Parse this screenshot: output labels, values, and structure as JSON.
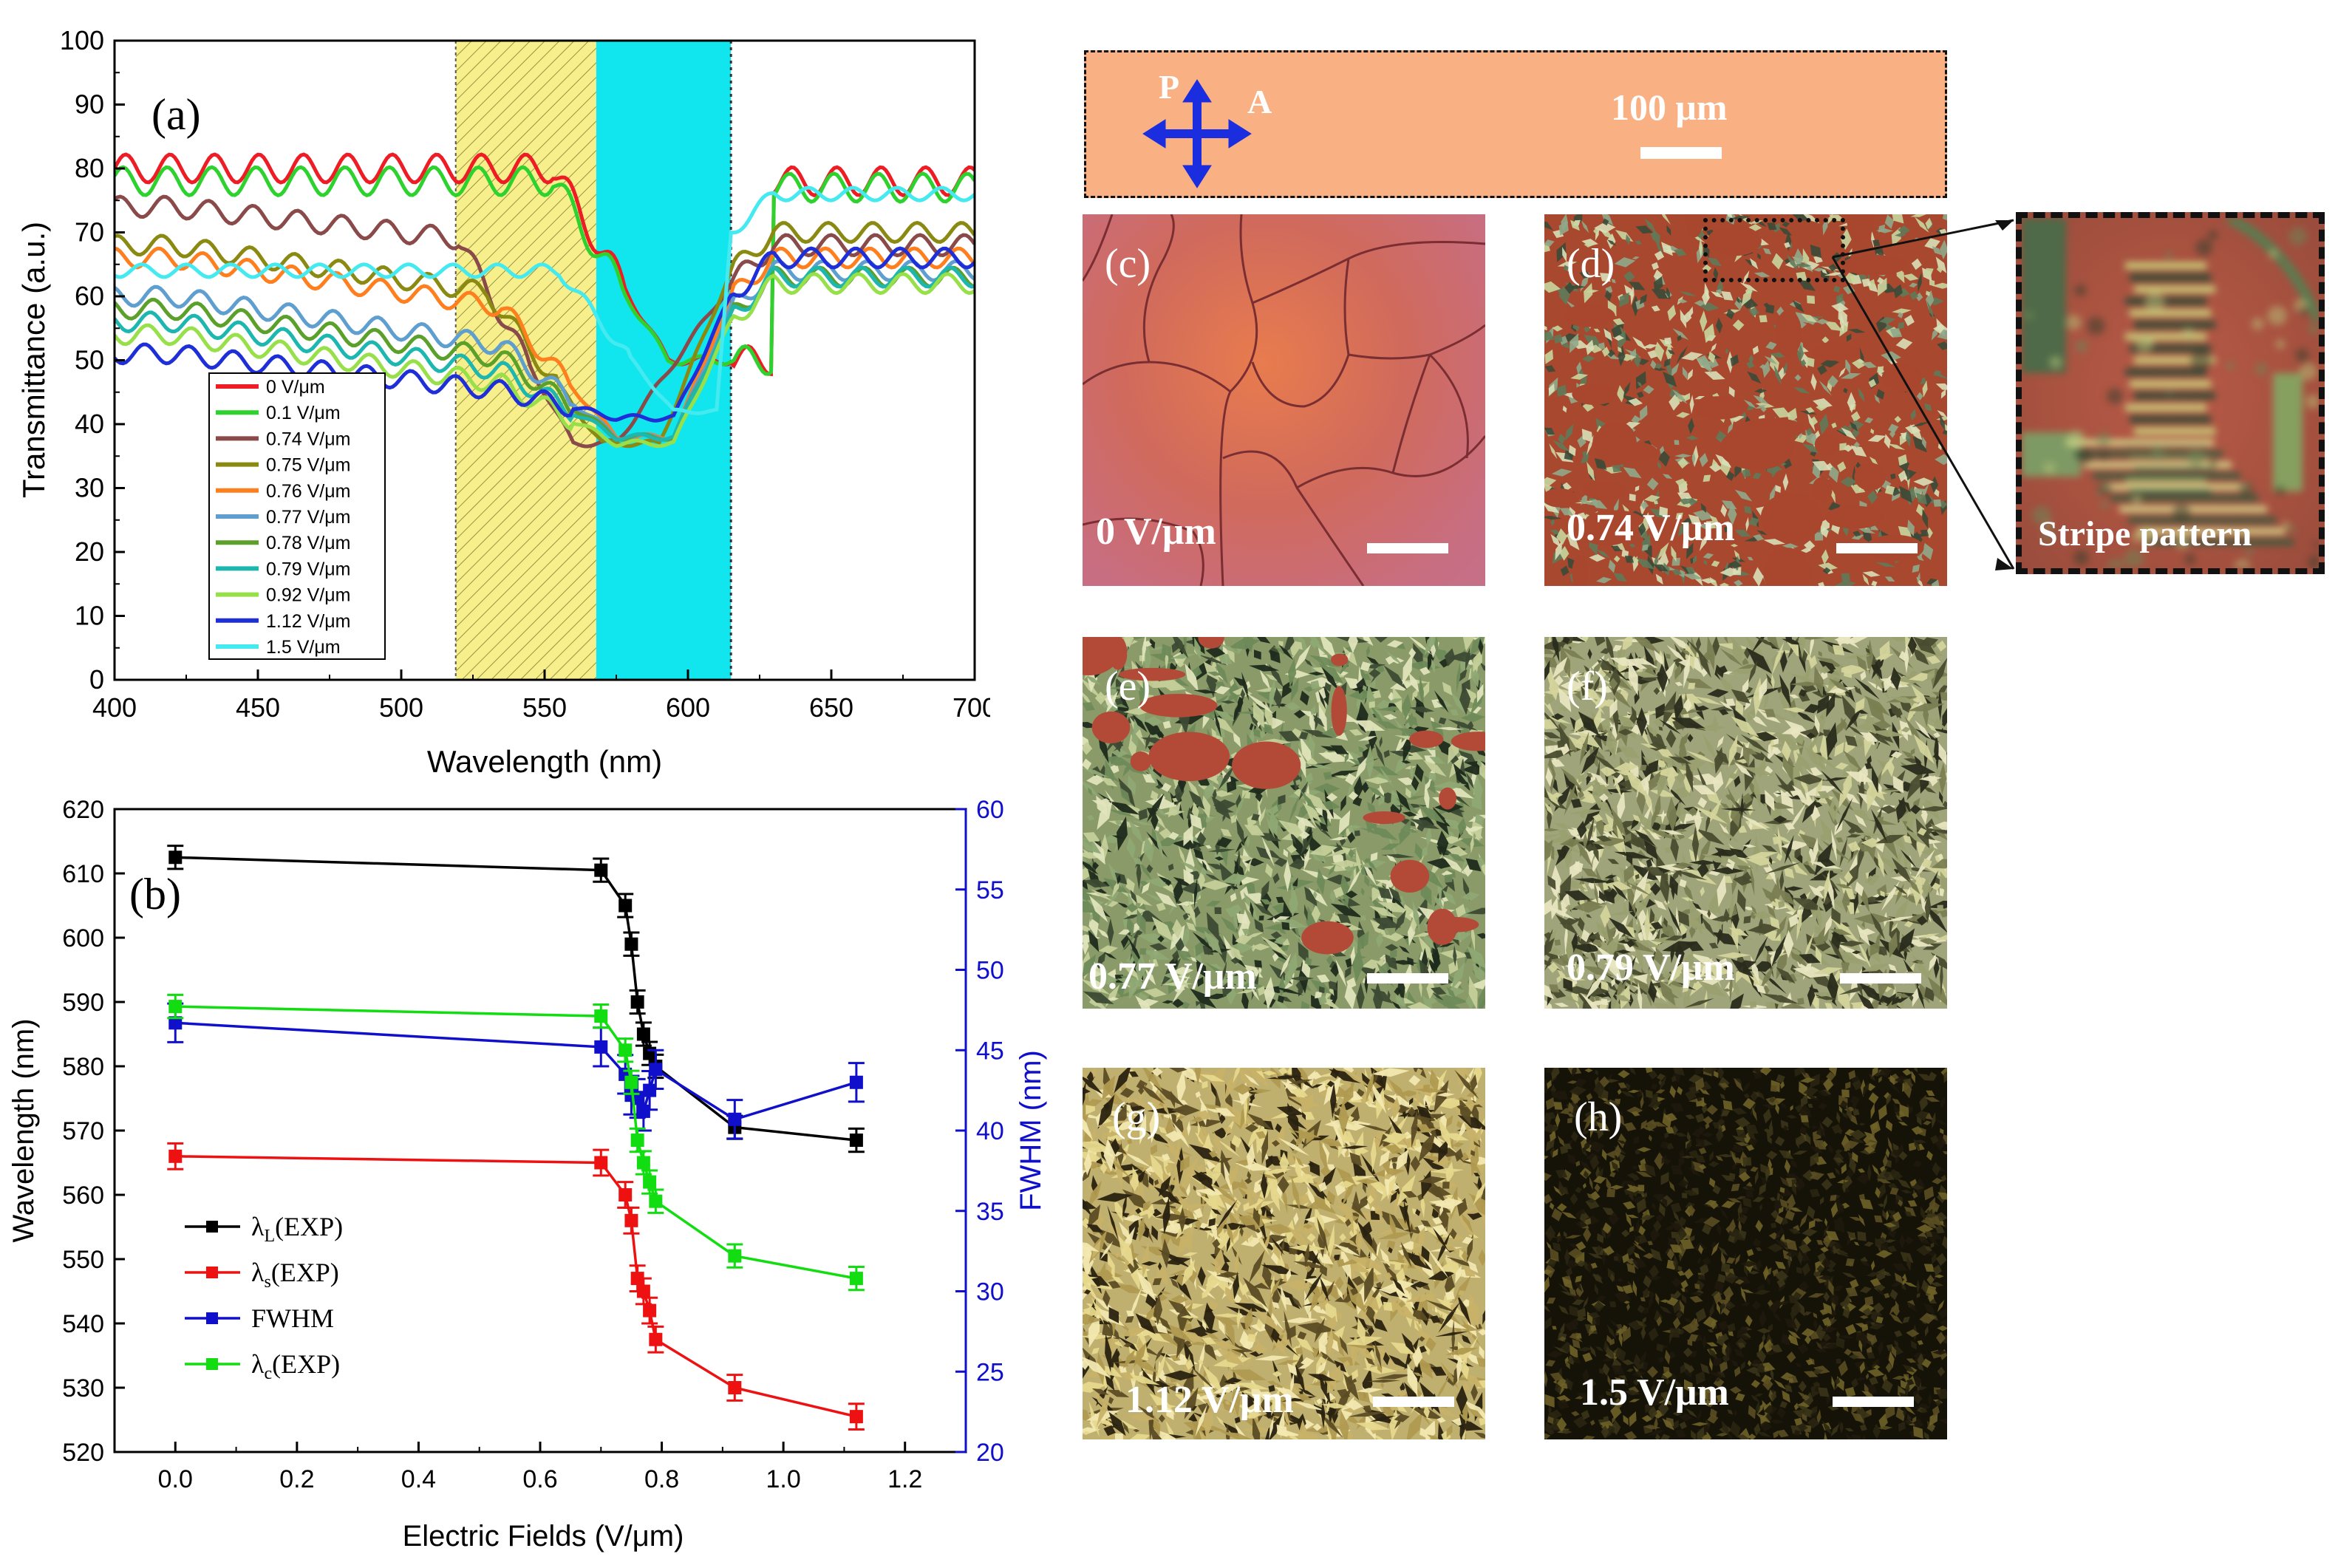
{
  "chart_data": [
    {
      "type": "line",
      "panel_label": "(a)",
      "xlabel": "Wavelength (nm)",
      "ylabel": "Transmittance (a.u.)",
      "xlim": [
        400,
        700
      ],
      "ylim": [
        0,
        100
      ],
      "xticks": [
        400,
        450,
        500,
        550,
        600,
        650,
        700
      ],
      "yticks": [
        0,
        10,
        20,
        30,
        40,
        50,
        60,
        70,
        80,
        90,
        100
      ],
      "bands": [
        {
          "name": "hatched-yellow",
          "from": 519,
          "to": 568,
          "color": "#f5ee8a"
        },
        {
          "name": "cyan",
          "from": 568,
          "to": 615,
          "color": "#11e6ee"
        }
      ],
      "series": [
        {
          "name": "0 V/μm",
          "color": "#ee1c24",
          "level": 80,
          "drop": 0,
          "dip_center": 600,
          "dip_level": 50,
          "edge": 578,
          "post": 78,
          "ripple": 2.2
        },
        {
          "name": "0.1 V/μm",
          "color": "#2ed22e",
          "level": 78,
          "drop": 0,
          "dip_center": 600,
          "dip_level": 50,
          "edge": 578,
          "post": 77,
          "ripple": 2.2
        },
        {
          "name": "0.74 V/μm",
          "color": "#8b4a4a",
          "level": 74,
          "drop": 6,
          "dip_center": 545,
          "dip_level": 37,
          "edge": 545,
          "post": 68,
          "ripple": 1.6
        },
        {
          "name": "0.75 V/μm",
          "color": "#8a8a12",
          "level": 68,
          "drop": 8,
          "dip_center": 560,
          "dip_level": 37,
          "edge": 555,
          "post": 70,
          "ripple": 1.5
        },
        {
          "name": "0.76 V/μm",
          "color": "#ff7f1f",
          "level": 66,
          "drop": 8,
          "dip_center": 565,
          "dip_level": 38,
          "edge": 560,
          "post": 66,
          "ripple": 1.5
        },
        {
          "name": "0.77 V/μm",
          "color": "#5f9fd0",
          "level": 60,
          "drop": 8,
          "dip_center": 565,
          "dip_level": 38,
          "edge": 560,
          "post": 64,
          "ripple": 1.5
        },
        {
          "name": "0.78 V/μm",
          "color": "#5aa02a",
          "level": 58,
          "drop": 8,
          "dip_center": 565,
          "dip_level": 38,
          "edge": 560,
          "post": 63,
          "ripple": 1.5
        },
        {
          "name": "0.79 V/μm",
          "color": "#1db7b0",
          "level": 56,
          "drop": 8,
          "dip_center": 565,
          "dip_level": 38,
          "edge": 560,
          "post": 63,
          "ripple": 1.5
        },
        {
          "name": "0.92 V/μm",
          "color": "#98e04a",
          "level": 54,
          "drop": 8,
          "dip_center": 565,
          "dip_level": 37,
          "edge": 560,
          "post": 62,
          "ripple": 1.5
        },
        {
          "name": "1.12 V/μm",
          "color": "#1f2fd8",
          "level": 51,
          "drop": 6,
          "dip_center": 565,
          "dip_level": 41,
          "edge": 560,
          "post": 66,
          "ripple": 1.5
        },
        {
          "name": "1.5 V/μm",
          "color": "#44eaf0",
          "level": 64,
          "drop": 0,
          "dip_center": 580,
          "dip_level": 42,
          "edge": 580,
          "post": 76,
          "ripple": 1.0
        }
      ]
    },
    {
      "type": "line",
      "panel_label": "(b)",
      "xlabel": "Electric Fields (V/μm)",
      "ylabel": "Wavelength (nm)",
      "y2label": "FWHM (nm)",
      "xlim": [
        -0.1,
        1.3
      ],
      "ylim": [
        520,
        620
      ],
      "y2lim": [
        20,
        60
      ],
      "xticks": [
        0.0,
        0.2,
        0.4,
        0.6,
        0.8,
        1.0,
        1.2
      ],
      "xtick_labels": [
        "0.0",
        "0.2",
        "0.4",
        "0.6",
        "0.8",
        "1.0",
        "1.2"
      ],
      "yticks": [
        520,
        530,
        540,
        550,
        560,
        570,
        580,
        590,
        600,
        610,
        620
      ],
      "y2ticks": [
        20,
        25,
        30,
        35,
        40,
        45,
        50,
        55,
        60
      ],
      "x": [
        0.0,
        0.7,
        0.74,
        0.75,
        0.76,
        0.77,
        0.78,
        0.79,
        0.92,
        1.12
      ],
      "series": [
        {
          "name": "λL(EXP)",
          "legend_main": "λ",
          "legend_sub": "L",
          "legend_rest": "(EXP)",
          "color": "#000000",
          "axis": "left",
          "values": [
            612.5,
            610.5,
            605,
            599,
            590,
            585,
            582,
            580,
            570.5,
            568.5
          ],
          "err": 1.8
        },
        {
          "name": "λs(EXP)",
          "legend_main": "λ",
          "legend_sub": "s",
          "legend_rest": "(EXP)",
          "color": "#ee1111",
          "axis": "left",
          "values": [
            566,
            565,
            560,
            556,
            547,
            545,
            542,
            537.5,
            530,
            525.5
          ],
          "err": 2.0
        },
        {
          "name": "FWHM",
          "legend_main": "FWHM",
          "legend_sub": "",
          "legend_rest": "",
          "color": "#1010cc",
          "axis": "right",
          "values": [
            46.7,
            45.2,
            43.5,
            42.2,
            42.0,
            41.2,
            42.5,
            43.8,
            40.7,
            43.0
          ],
          "err": 1.2
        },
        {
          "name": "λc(EXP)",
          "legend_main": "λ",
          "legend_sub": "c",
          "legend_rest": "(EXP)",
          "color": "#11dd11",
          "axis": "left",
          "values": [
            589.3,
            587.8,
            582.5,
            577.5,
            568.5,
            565,
            562,
            559,
            550.5,
            547
          ],
          "err": 1.8
        }
      ]
    }
  ],
  "micrographs": {
    "header": {
      "p_label": "P",
      "a_label": "A",
      "scale_label": "100 μm"
    },
    "panels": [
      {
        "letter": "(c)",
        "field": "0 V/μm"
      },
      {
        "letter": "(d)",
        "field": "0.74 V/μm"
      },
      {
        "letter": "(e)",
        "field": "0.77 V/μm"
      },
      {
        "letter": "(f)",
        "field": "0.79 V/μm"
      },
      {
        "letter": "(g)",
        "field": "1.12 V/μm"
      },
      {
        "letter": "(h)",
        "field": "1.5 V/μm"
      }
    ],
    "inset_label": "Stripe pattern"
  }
}
